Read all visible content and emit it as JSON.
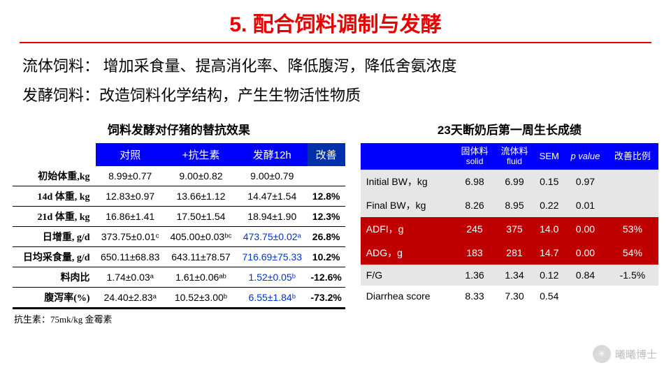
{
  "title": "5.   配合饲料调制与发酵",
  "intro_line1": "流体饲料：  增加采食量、提高消化率、降低腹泻，降低舍氨浓度",
  "intro_line2": "发酵饲料：改造饲料化学结构，产生生物活性物质",
  "left": {
    "title": "饲料发酵对仔猪的替抗效果",
    "headers": {
      "c0": "",
      "c1": "对照",
      "c2": "+抗生素",
      "c3": "发酵12h",
      "c4": "改善"
    },
    "rows": [
      {
        "m": "初始体重,kg",
        "a": "8.99±0.77",
        "b": "9.00±0.82",
        "c": "9.00±0.79",
        "d": ""
      },
      {
        "m": "14d 体重, kg",
        "a": "12.83±0.97",
        "b": "13.66±1.12",
        "c": "14.47±1.54",
        "d": "12.8%"
      },
      {
        "m": "21d 体重, kg",
        "a": "16.86±1.41",
        "b": "17.50±1.54",
        "c": "18.94±1.90",
        "d": "12.3%"
      },
      {
        "m": "日增重, g/d",
        "a": "373.75±0.01ᶜ",
        "b": "405.00±0.03ᵇᶜ",
        "c": "473.75±0.02ᵃ",
        "c_blue": true,
        "d": "26.8%"
      },
      {
        "m": "日均采食量, g/d",
        "a": "650.11±68.83",
        "b": "643.11±78.57",
        "c": "716.69±75.33",
        "c_blue": true,
        "d": "10.2%"
      },
      {
        "m": "料肉比",
        "a": "1.74±0.03ᵃ",
        "b": "1.61±0.06ᵃᵇ",
        "c": "1.52±0.05ᵇ",
        "c_blue": true,
        "d": "-12.6%"
      },
      {
        "m": "腹泻率(%)",
        "a": "24.40±2.83ᵃ",
        "b": "10.52±3.00ᵇ",
        "c": "6.55±1.84ᵇ",
        "c_blue": true,
        "d": "-73.2%"
      }
    ],
    "footnote": "抗生素：75mk/kg 金霉素"
  },
  "right": {
    "title": "23天断奶后第一周生长成绩",
    "headers": {
      "c0": "",
      "c1a": "固体料",
      "c1b": "solid",
      "c2a": "流体料",
      "c2b": "fluid",
      "c3": "SEM",
      "c4": "p value",
      "c5": "改善比例"
    },
    "rows": [
      {
        "cls": "grey",
        "m": "Initial BW，kg",
        "a": "6.98",
        "b": "6.99",
        "c": "0.15",
        "d": "0.97",
        "e": ""
      },
      {
        "cls": "grey",
        "m": "Final BW，kg",
        "a": "8.26",
        "b": "8.95",
        "c": "0.22",
        "d": "0.01",
        "e": ""
      },
      {
        "cls": "red",
        "m": "ADFI，g",
        "a": "245",
        "b": "375",
        "c": "14.0",
        "d": "0.00",
        "e": "53%"
      },
      {
        "cls": "red",
        "m": "ADG，g",
        "a": "183",
        "b": "281",
        "c": "14.7",
        "d": "0.00",
        "e": "54%"
      },
      {
        "cls": "grey",
        "m": "F/G",
        "a": "1.36",
        "b": "1.34",
        "c": "0.12",
        "d": "0.84",
        "e": "-1.5%"
      },
      {
        "cls": "",
        "m": "Diarrhea score",
        "a": "8.33",
        "b": "7.30",
        "c": "0.54",
        "d": "",
        "e": ""
      }
    ]
  },
  "watermark": "曦曦博士"
}
